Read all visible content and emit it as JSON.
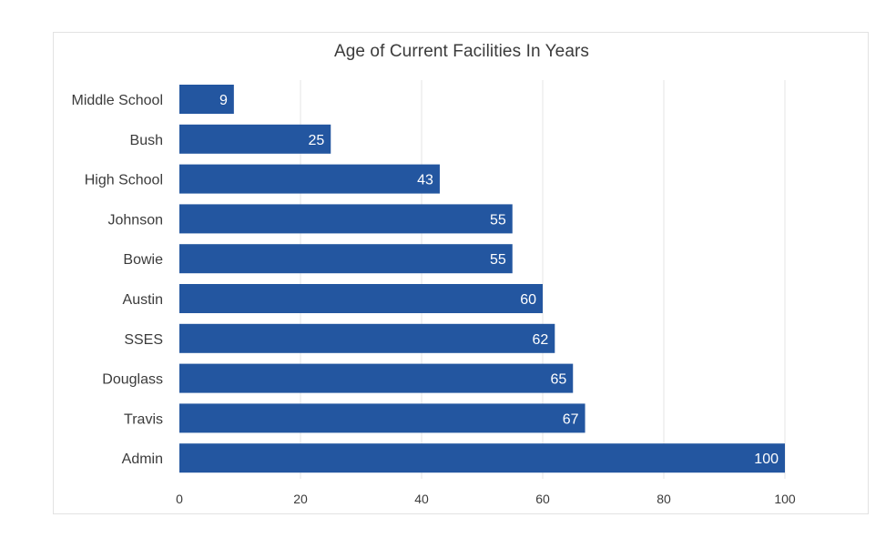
{
  "chart_data": {
    "type": "bar",
    "orientation": "horizontal",
    "title": "Age of Current Facilities In Years",
    "categories": [
      "Middle School",
      "Bush",
      "High School",
      "Johnson",
      "Bowie",
      "Austin",
      "SSES",
      "Douglass",
      "Travis",
      "Admin"
    ],
    "values": [
      9,
      25,
      43,
      55,
      55,
      60,
      62,
      65,
      67,
      100
    ],
    "xticks": [
      "0",
      "20",
      "40",
      "60",
      "80",
      "100"
    ],
    "xlim": [
      0,
      100
    ],
    "grid": true,
    "legend": "none",
    "bar_color": "#2356a0"
  }
}
